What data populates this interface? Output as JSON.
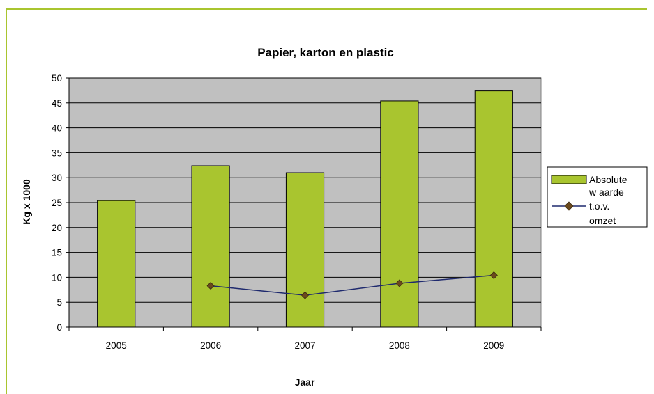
{
  "chart_data": {
    "type": "bar",
    "title": "Papier, karton en plastic",
    "xlabel": "Jaar",
    "ylabel": "Kg x 1000",
    "categories": [
      "2005",
      "2006",
      "2007",
      "2008",
      "2009"
    ],
    "ylim": [
      0,
      50
    ],
    "yticks": [
      "0",
      "5",
      "10",
      "15",
      "20",
      "25",
      "30",
      "35",
      "40",
      "45",
      "50"
    ],
    "grid": true,
    "legend_position": "right",
    "series": [
      {
        "name": "Absolute waarde",
        "kind": "bar",
        "color": "#a9c52f",
        "values": [
          25.4,
          32.4,
          31.0,
          45.4,
          47.4
        ]
      },
      {
        "name": "t.o.v. omzet",
        "kind": "line",
        "color": "#1f2a6e",
        "marker_color": "#6b4a1d",
        "values": [
          null,
          8.3,
          6.4,
          8.8,
          10.4
        ]
      }
    ],
    "legend": {
      "bar_label_lines": [
        "Absolute",
        "w aarde"
      ],
      "line_label_lines": [
        "t.o.v.",
        "omzet"
      ]
    }
  },
  "colors": {
    "plot_background": "#c0c0c0",
    "frame_border": "#a9c52f"
  }
}
